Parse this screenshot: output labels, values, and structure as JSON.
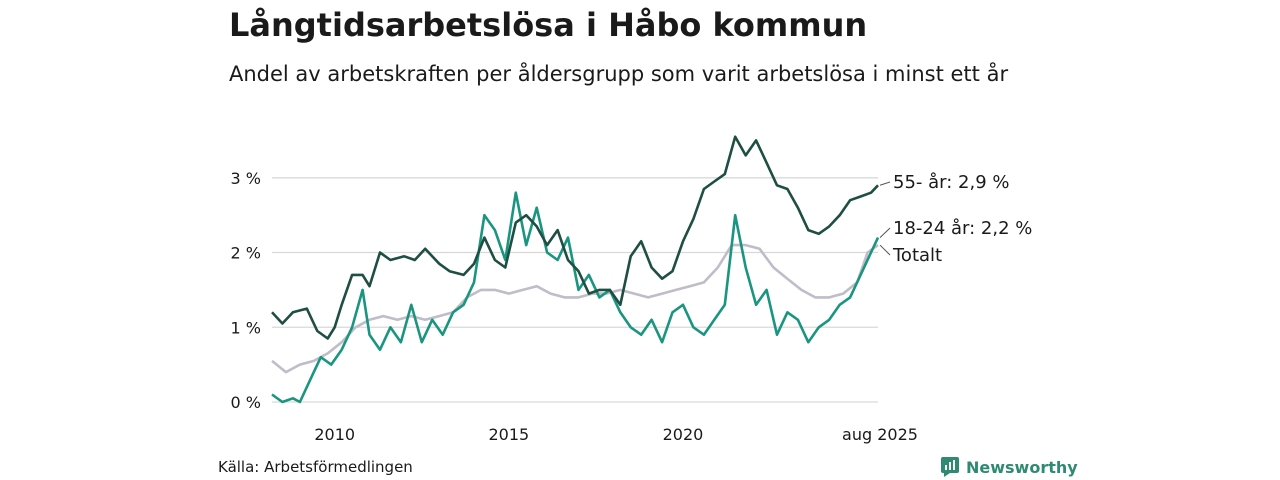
{
  "title": "Långtidsarbetslösa i Håbo kommun",
  "subtitle": "Andel av arbetskraften per åldersgrupp som varit arbetslösa i minst ett år",
  "source": "Källa: Arbetsförmedlingen",
  "brand": "Newsworthy",
  "colors": {
    "s55": "#1f4e42",
    "s1824": "#1a9580",
    "total": "#c0bcc8",
    "grid": "#d9d9d9",
    "brand": "#2e8b72"
  },
  "chart_data": {
    "type": "line",
    "x_range": [
      2008.2,
      2025.6
    ],
    "ylim": [
      0,
      3.8
    ],
    "y_ticks": [
      0,
      1,
      2,
      3
    ],
    "y_tick_labels": [
      "0 %",
      "1 %",
      "2 %",
      "3 %"
    ],
    "x_ticks": [
      2010,
      2015,
      2020,
      2025.6
    ],
    "x_tick_labels": [
      "2010",
      "2015",
      "2020",
      "aug 2025"
    ],
    "grid": true,
    "series": [
      {
        "key": "s55",
        "end_label": "55- år: 2,9 %",
        "x": [
          2008.2,
          2008.5,
          2008.8,
          2009.2,
          2009.5,
          2009.8,
          2010.0,
          2010.2,
          2010.5,
          2010.8,
          2011.0,
          2011.3,
          2011.6,
          2012.0,
          2012.3,
          2012.6,
          2013.0,
          2013.3,
          2013.7,
          2014.0,
          2014.3,
          2014.6,
          2014.9,
          2015.2,
          2015.5,
          2015.8,
          2016.1,
          2016.4,
          2016.7,
          2017.0,
          2017.3,
          2017.6,
          2017.9,
          2018.2,
          2018.5,
          2018.8,
          2019.1,
          2019.4,
          2019.7,
          2020.0,
          2020.3,
          2020.6,
          2020.9,
          2021.2,
          2021.5,
          2021.8,
          2022.1,
          2022.4,
          2022.7,
          2023.0,
          2023.3,
          2023.6,
          2023.9,
          2024.2,
          2024.5,
          2024.8,
          2025.1,
          2025.4,
          2025.6
        ],
        "y": [
          1.2,
          1.05,
          1.2,
          1.25,
          0.95,
          0.85,
          1.0,
          1.3,
          1.7,
          1.7,
          1.55,
          2.0,
          1.9,
          1.95,
          1.9,
          2.05,
          1.85,
          1.75,
          1.7,
          1.85,
          2.2,
          1.9,
          1.8,
          2.4,
          2.5,
          2.35,
          2.1,
          2.3,
          1.9,
          1.75,
          1.45,
          1.5,
          1.5,
          1.3,
          1.95,
          2.15,
          1.8,
          1.65,
          1.75,
          2.15,
          2.45,
          2.85,
          2.95,
          3.05,
          3.55,
          3.3,
          3.5,
          3.2,
          2.9,
          2.85,
          2.6,
          2.3,
          2.25,
          2.35,
          2.5,
          2.7,
          2.75,
          2.8,
          2.9
        ]
      },
      {
        "key": "s1824",
        "end_label": "18-24 år: 2,2 %",
        "x": [
          2008.2,
          2008.5,
          2008.8,
          2009.0,
          2009.3,
          2009.6,
          2009.9,
          2010.2,
          2010.5,
          2010.8,
          2011.0,
          2011.3,
          2011.6,
          2011.9,
          2012.2,
          2012.5,
          2012.8,
          2013.1,
          2013.4,
          2013.7,
          2014.0,
          2014.3,
          2014.6,
          2014.9,
          2015.2,
          2015.5,
          2015.8,
          2016.1,
          2016.4,
          2016.7,
          2017.0,
          2017.3,
          2017.6,
          2017.9,
          2018.2,
          2018.5,
          2018.8,
          2019.1,
          2019.4,
          2019.7,
          2020.0,
          2020.3,
          2020.6,
          2020.9,
          2021.2,
          2021.5,
          2021.8,
          2022.1,
          2022.4,
          2022.7,
          2023.0,
          2023.3,
          2023.6,
          2023.9,
          2024.2,
          2024.5,
          2024.8,
          2025.1,
          2025.4,
          2025.6
        ],
        "y": [
          0.1,
          0.0,
          0.05,
          0.0,
          0.3,
          0.6,
          0.5,
          0.7,
          1.0,
          1.5,
          0.9,
          0.7,
          1.0,
          0.8,
          1.3,
          0.8,
          1.1,
          0.9,
          1.2,
          1.3,
          1.6,
          2.5,
          2.3,
          1.9,
          2.8,
          2.1,
          2.6,
          2.0,
          1.9,
          2.2,
          1.5,
          1.7,
          1.4,
          1.5,
          1.2,
          1.0,
          0.9,
          1.1,
          0.8,
          1.2,
          1.3,
          1.0,
          0.9,
          1.1,
          1.3,
          2.5,
          1.8,
          1.3,
          1.5,
          0.9,
          1.2,
          1.1,
          0.8,
          1.0,
          1.1,
          1.3,
          1.4,
          1.7,
          2.0,
          2.2
        ]
      },
      {
        "key": "total",
        "end_label": "Totalt",
        "x": [
          2008.2,
          2008.6,
          2009.0,
          2009.4,
          2009.8,
          2010.2,
          2010.6,
          2011.0,
          2011.4,
          2011.8,
          2012.2,
          2012.6,
          2013.0,
          2013.4,
          2013.8,
          2014.2,
          2014.6,
          2015.0,
          2015.4,
          2015.8,
          2016.2,
          2016.6,
          2017.0,
          2017.4,
          2017.8,
          2018.2,
          2018.6,
          2019.0,
          2019.4,
          2019.8,
          2020.2,
          2020.6,
          2021.0,
          2021.4,
          2021.8,
          2022.2,
          2022.6,
          2023.0,
          2023.4,
          2023.8,
          2024.2,
          2024.6,
          2025.0,
          2025.3,
          2025.6
        ],
        "y": [
          0.55,
          0.4,
          0.5,
          0.55,
          0.65,
          0.8,
          1.0,
          1.1,
          1.15,
          1.1,
          1.15,
          1.1,
          1.15,
          1.2,
          1.4,
          1.5,
          1.5,
          1.45,
          1.5,
          1.55,
          1.45,
          1.4,
          1.4,
          1.45,
          1.45,
          1.5,
          1.45,
          1.4,
          1.45,
          1.5,
          1.55,
          1.6,
          1.8,
          2.1,
          2.1,
          2.05,
          1.8,
          1.65,
          1.5,
          1.4,
          1.4,
          1.45,
          1.6,
          2.0,
          2.1
        ]
      }
    ]
  }
}
